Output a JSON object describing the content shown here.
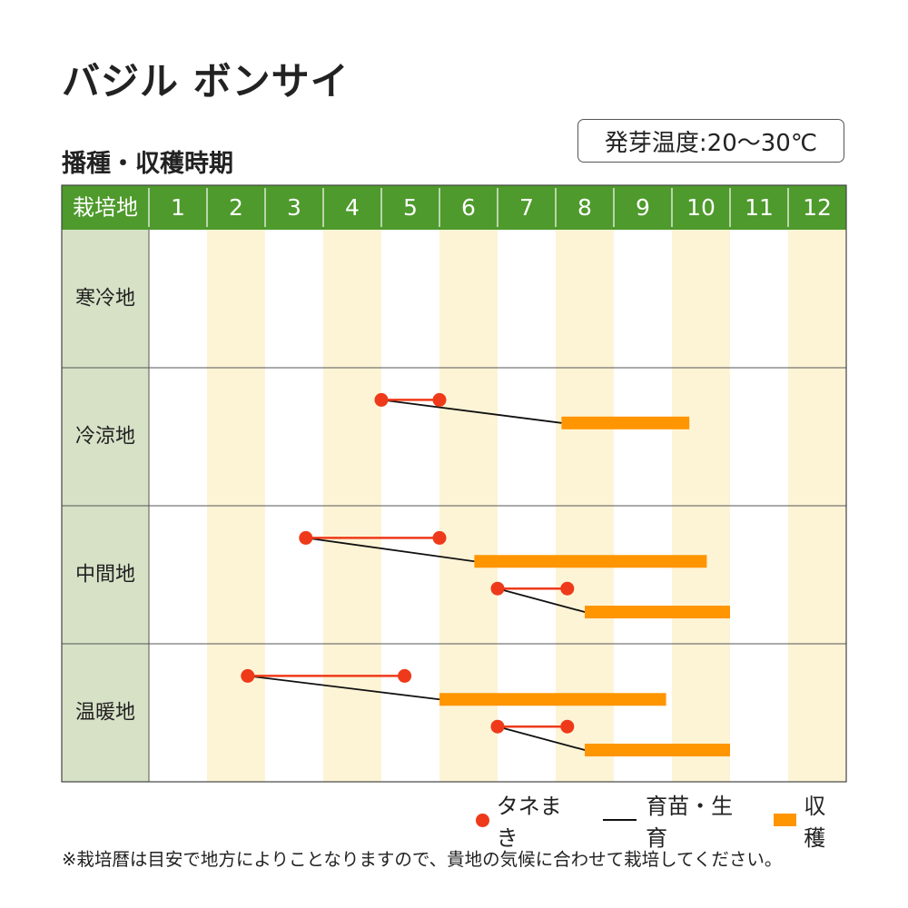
{
  "title": "バジル ボンサイ",
  "subtitle": "播種・収穫時期",
  "germination_temp": "発芽温度:20〜30℃",
  "note": "※栽培暦は目安で地方によりことなりますので、貴地の気候に合わせて栽培してください。",
  "legend": {
    "sowing": "タネまき",
    "growing": "育苗・生育",
    "harvest": "収穫"
  },
  "colors": {
    "header": "#4e9a2c",
    "region_column": "#d6e1c6",
    "stripe": "#fdf4d6",
    "sowing": "#ee3a1a",
    "harvest": "#ff9500",
    "growing": "#111111"
  },
  "chart_data": {
    "type": "gantt",
    "header_label": "栽培地",
    "months": [
      "1",
      "2",
      "3",
      "4",
      "5",
      "6",
      "7",
      "8",
      "9",
      "10",
      "11",
      "12"
    ],
    "regions": [
      {
        "name": "寒冷地",
        "schedules": []
      },
      {
        "name": "冷涼地",
        "schedules": [
          {
            "sowing": [
              5.0,
              6.0
            ],
            "harvest": [
              8.1,
              10.3
            ]
          }
        ]
      },
      {
        "name": "中間地",
        "schedules": [
          {
            "sowing": [
              3.7,
              6.0
            ],
            "harvest": [
              6.6,
              10.6
            ]
          },
          {
            "sowing": [
              7.0,
              8.2
            ],
            "harvest": [
              8.5,
              11.0
            ]
          }
        ]
      },
      {
        "name": "温暖地",
        "schedules": [
          {
            "sowing": [
              2.7,
              5.4
            ],
            "harvest": [
              6.0,
              9.9
            ]
          },
          {
            "sowing": [
              7.0,
              8.2
            ],
            "harvest": [
              8.5,
              11.0
            ]
          }
        ]
      }
    ]
  }
}
